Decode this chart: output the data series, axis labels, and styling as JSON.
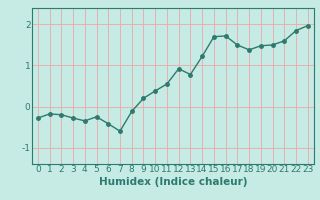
{
  "x": [
    0,
    1,
    2,
    3,
    4,
    5,
    6,
    7,
    8,
    9,
    10,
    11,
    12,
    13,
    14,
    15,
    16,
    17,
    18,
    19,
    20,
    21,
    22,
    23
  ],
  "y": [
    -0.28,
    -0.18,
    -0.2,
    -0.28,
    -0.35,
    -0.25,
    -0.42,
    -0.6,
    -0.12,
    0.2,
    0.38,
    0.55,
    0.92,
    0.78,
    1.22,
    1.7,
    1.72,
    1.5,
    1.38,
    1.48,
    1.5,
    1.6,
    1.85,
    1.97
  ],
  "line_color": "#2d7a6f",
  "marker": "o",
  "marker_size": 2.5,
  "bg_color": "#c5ebe4",
  "grid_color": "#e8b0b0",
  "xlabel": "Humidex (Indice chaleur)",
  "ylim": [
    -1.4,
    2.4
  ],
  "xlim": [
    -0.5,
    23.5
  ],
  "yticks": [
    -1,
    0,
    1,
    2
  ],
  "xticks": [
    0,
    1,
    2,
    3,
    4,
    5,
    6,
    7,
    8,
    9,
    10,
    11,
    12,
    13,
    14,
    15,
    16,
    17,
    18,
    19,
    20,
    21,
    22,
    23
  ],
  "xlabel_fontsize": 7.5,
  "tick_fontsize": 6.5,
  "linewidth": 1.0
}
